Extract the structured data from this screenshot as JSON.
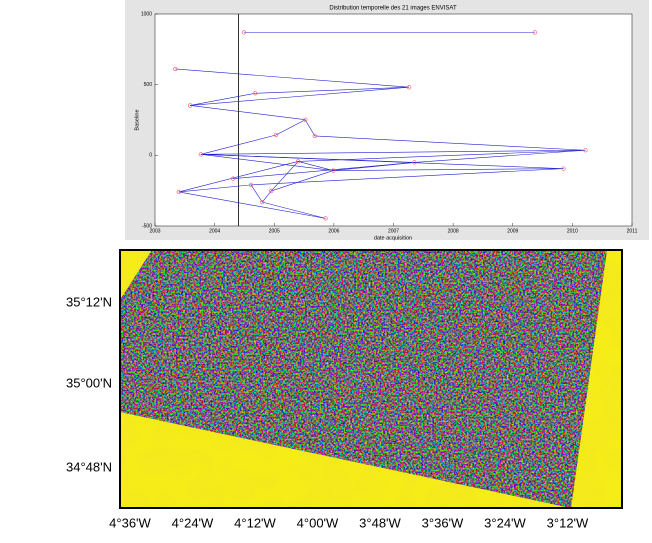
{
  "chart_data": {
    "type": "network",
    "title": "Distribution temporelle des 21 images ENVISAT",
    "x_label": "date acquisition",
    "y_label": "Baseline",
    "x": [
      2004.49,
      2009.37,
      2003.34,
      2007.26,
      2004.68,
      2003.59,
      2005.52,
      2005.03,
      2005.68,
      2003.77,
      2010.22,
      2009.85,
      2007.35,
      2005.4,
      2005.99,
      2004.61,
      2004.95,
      2003.4,
      2004.8,
      2005.86,
      2004.31
    ],
    "values": [
      870,
      870,
      611,
      482,
      439,
      353,
      252,
      144,
      137,
      7,
      36,
      -94,
      -50,
      -43,
      -108,
      -209,
      -252,
      -259,
      -331,
      -446,
      -165
    ],
    "edges": [
      [
        0,
        1
      ],
      [
        2,
        3
      ],
      [
        5,
        3
      ],
      [
        4,
        3
      ],
      [
        5,
        4
      ],
      [
        5,
        6
      ],
      [
        6,
        7
      ],
      [
        6,
        8
      ],
      [
        7,
        9
      ],
      [
        9,
        10
      ],
      [
        8,
        10
      ],
      [
        9,
        11
      ],
      [
        9,
        12
      ],
      [
        12,
        10
      ],
      [
        13,
        10
      ],
      [
        13,
        14
      ],
      [
        14,
        11
      ],
      [
        15,
        11
      ],
      [
        16,
        14
      ],
      [
        17,
        15
      ],
      [
        17,
        13
      ],
      [
        15,
        18
      ],
      [
        16,
        18
      ],
      [
        18,
        19
      ],
      [
        17,
        19
      ],
      [
        9,
        14
      ],
      [
        14,
        12
      ],
      [
        16,
        13
      ],
      [
        20,
        12
      ]
    ],
    "line_color": "#2020d0",
    "marker_color": "#ff6070",
    "vline": 2004.4,
    "xlim": [
      2003,
      2011
    ],
    "xticks": [
      2003,
      2004,
      2005,
      2006,
      2007,
      2008,
      2009,
      2010,
      2011
    ],
    "ylim": [
      -500,
      1000
    ],
    "yticks": [
      -500,
      0,
      500,
      1000
    ]
  },
  "map": {
    "lat_labels": [
      "35°12'N",
      "35°00'N",
      "34°48'N"
    ],
    "lon_labels": [
      "4°36'W",
      "4°24'W",
      "4°12'W",
      "4°00'W",
      "3°48'W",
      "3°36'W",
      "3°24'W",
      "3°12'W"
    ]
  }
}
